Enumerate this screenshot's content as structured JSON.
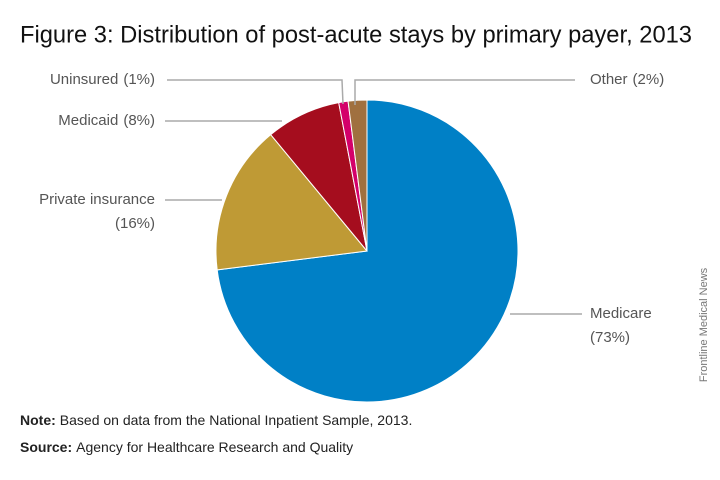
{
  "chart_data": {
    "type": "pie",
    "title": "Figure 3: Distribution of post-acute stays by primary payer, 2013",
    "categories": [
      "Medicare",
      "Private insurance",
      "Medicaid",
      "Uninsured",
      "Other"
    ],
    "values": [
      73,
      16,
      8,
      1,
      2
    ],
    "value_labels": [
      "(73%)",
      "(16%)",
      "(8%)",
      "(1%)",
      "(2%)"
    ],
    "colors": [
      "#0080c6",
      "#bf9a35",
      "#a50d1e",
      "#d4006a",
      "#a0703f"
    ],
    "note": {
      "label": "Note:",
      "text": "Based on data from the National Inpatient Sample, 2013."
    },
    "source": {
      "label": "Source:",
      "text": "Agency for Healthcare Research and Quality"
    },
    "credit": "Frontline Medical News"
  }
}
